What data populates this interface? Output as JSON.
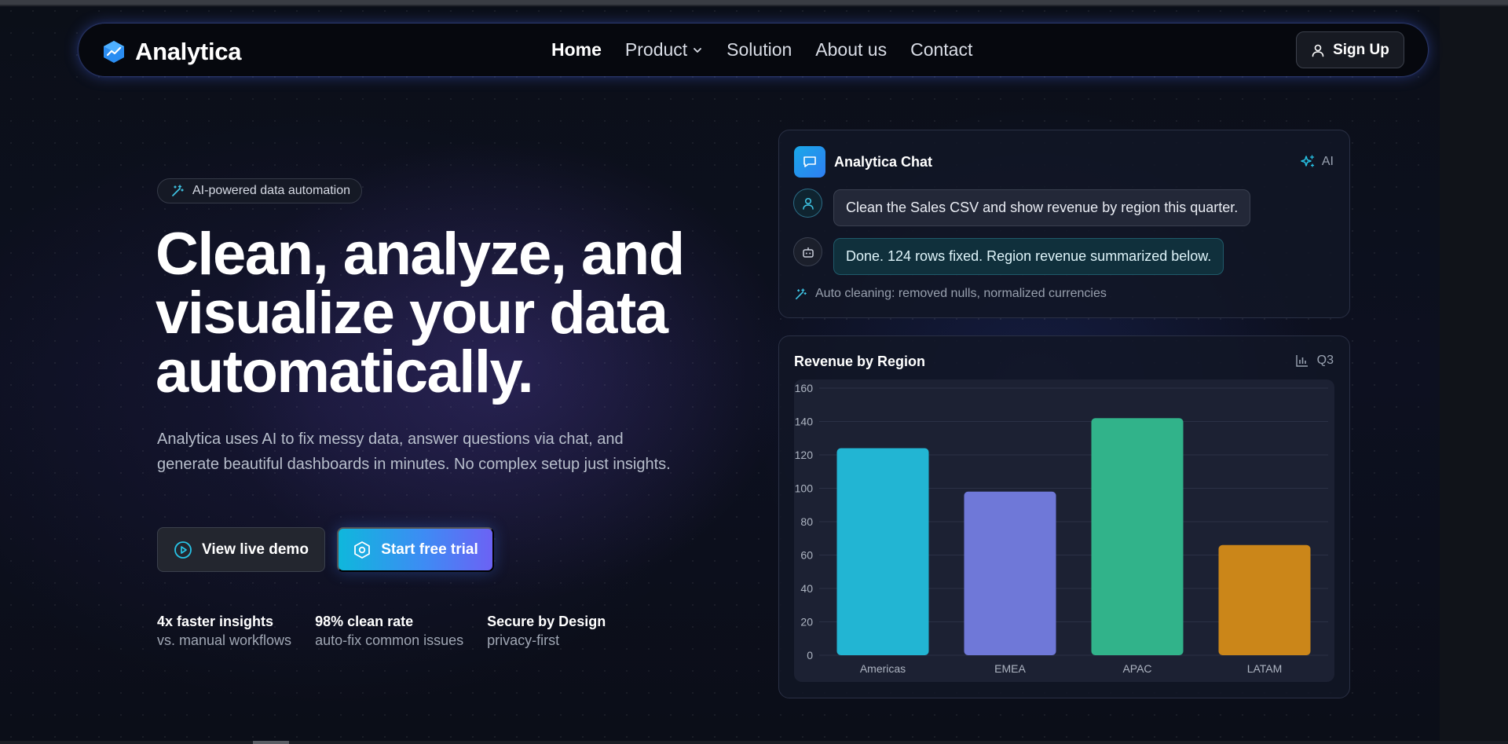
{
  "brand": {
    "name": "Analytica",
    "icon": "chart-cube-icon"
  },
  "nav": {
    "links": [
      {
        "label": "Home",
        "active": true
      },
      {
        "label": "Product",
        "dropdown": true
      },
      {
        "label": "Solution"
      },
      {
        "label": "About us"
      },
      {
        "label": "Contact"
      }
    ],
    "signup_label": "Sign Up"
  },
  "hero": {
    "badge": "AI-powered data automation",
    "headline_lines": [
      "Clean, analyze, and",
      "visualize your data",
      "automatically."
    ],
    "subtext": "Analytica uses AI to fix messy data, answer questions via chat, and generate beautiful dashboards in minutes. No complex setup just insights.",
    "demo_label": "View live demo",
    "trial_label": "Start free trial",
    "stats": [
      {
        "title": "4x faster insights",
        "sub": "vs. manual workflows"
      },
      {
        "title": "98% clean rate",
        "sub": "auto-fix common issues"
      },
      {
        "title": "Secure by Design",
        "sub": "privacy-first"
      }
    ]
  },
  "chat": {
    "title": "Analytica Chat",
    "ai_label": "AI",
    "user_message": "Clean the Sales CSV and show revenue by region this quarter.",
    "bot_message": "Done. 124 rows fixed. Region revenue summarized below.",
    "note": "Auto cleaning: removed nulls, normalized currencies"
  },
  "chart_card": {
    "title": "Revenue by Region",
    "period": "Q3"
  },
  "colors": {
    "accent_cyan": "#0fb7dc",
    "accent_violet": "#6c62f4",
    "bar_americas": "#22b5d3",
    "bar_emea": "#6f78d8",
    "bar_apac": "#31b38a",
    "bar_latam": "#cb8619"
  },
  "chart_data": {
    "type": "bar",
    "title": "Revenue by Region",
    "categories": [
      "Americas",
      "EMEA",
      "APAC",
      "LATAM"
    ],
    "values": [
      124,
      98,
      142,
      66
    ],
    "colors": [
      "#22b5d3",
      "#6f78d8",
      "#31b38a",
      "#cb8619"
    ],
    "ylim": [
      0,
      160
    ],
    "yticks": [
      0,
      20,
      40,
      60,
      80,
      100,
      120,
      140,
      160
    ],
    "grid": true,
    "xlabel": "",
    "ylabel": ""
  }
}
